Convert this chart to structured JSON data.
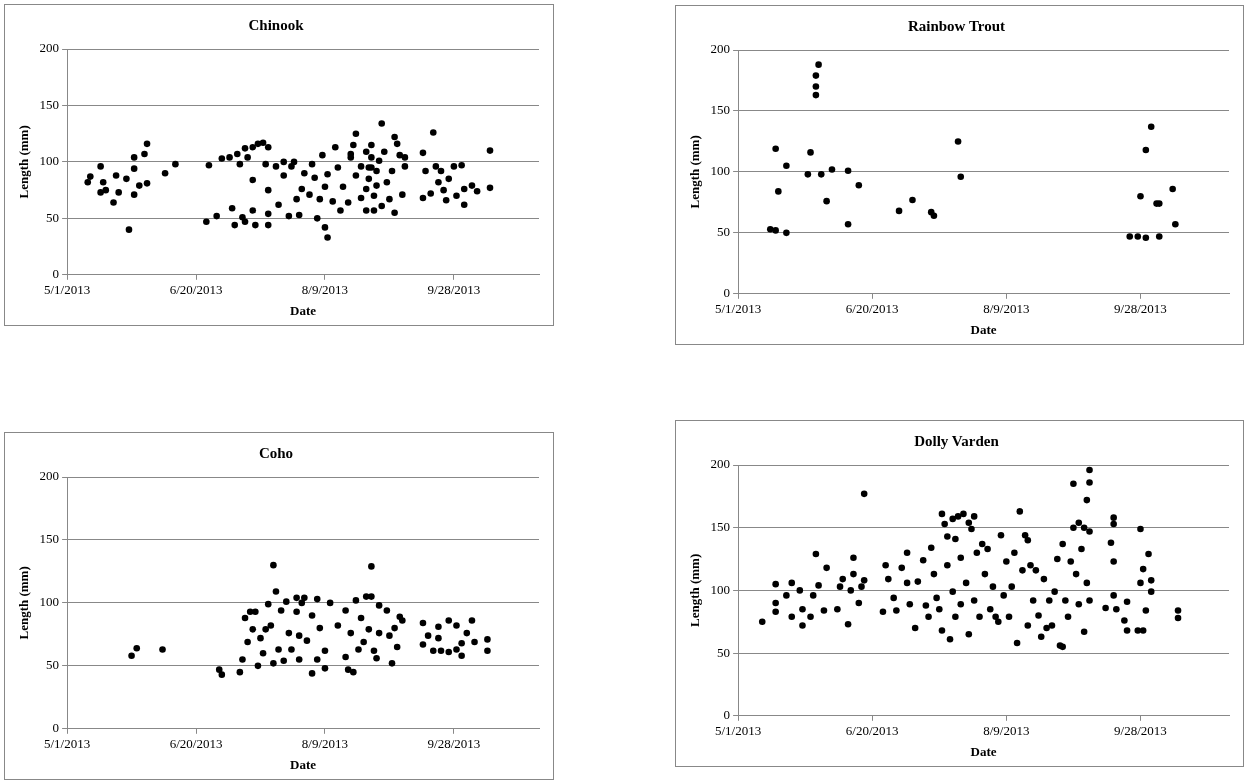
{
  "chart_data": [
    {
      "type": "scatter",
      "title": "Chinook",
      "xlabel": "Date",
      "ylabel": "Length (mm)",
      "color": "#000000",
      "marker": "circle",
      "grid": "y",
      "xlim": [
        "2013-05-01",
        "2013-10-31"
      ],
      "xticks": [
        {
          "value": "2013-05-01",
          "label": "5/1/2013"
        },
        {
          "value": "2013-06-20",
          "label": "6/20/2013"
        },
        {
          "value": "2013-08-09",
          "label": "8/9/2013"
        },
        {
          "value": "2013-09-28",
          "label": "9/28/2013"
        }
      ],
      "ylim": [
        0,
        200
      ],
      "yticks": [
        0,
        50,
        100,
        150,
        200
      ],
      "x": [
        "2013-05-09",
        "2013-05-10",
        "2013-05-14",
        "2013-05-14",
        "2013-05-15",
        "2013-05-16",
        "2013-05-19",
        "2013-05-20",
        "2013-05-21",
        "2013-05-24",
        "2013-05-25",
        "2013-05-27",
        "2013-05-27",
        "2013-05-27",
        "2013-05-29",
        "2013-05-31",
        "2013-06-01",
        "2013-06-01",
        "2013-06-08",
        "2013-06-12",
        "2013-06-25",
        "2013-06-24",
        "2013-06-28",
        "2013-06-30",
        "2013-07-03",
        "2013-07-04",
        "2013-07-05",
        "2013-07-06",
        "2013-07-07",
        "2013-07-08",
        "2013-07-09",
        "2013-07-09",
        "2013-07-10",
        "2013-07-12",
        "2013-07-12",
        "2013-07-12",
        "2013-07-13",
        "2013-07-14",
        "2013-07-16",
        "2013-07-17",
        "2013-07-18",
        "2013-07-18",
        "2013-07-18",
        "2013-07-18",
        "2013-07-21",
        "2013-07-22",
        "2013-07-24",
        "2013-07-24",
        "2013-07-26",
        "2013-07-27",
        "2013-07-28",
        "2013-07-29",
        "2013-07-30",
        "2013-07-31",
        "2013-08-01",
        "2013-08-03",
        "2013-08-04",
        "2013-08-05",
        "2013-08-06",
        "2013-08-07",
        "2013-08-08",
        "2013-08-09",
        "2013-08-09",
        "2013-08-10",
        "2013-08-10",
        "2013-08-12",
        "2013-08-13",
        "2013-08-14",
        "2013-08-15",
        "2013-08-16",
        "2013-08-18",
        "2013-08-19",
        "2013-08-19",
        "2013-08-20",
        "2013-08-21",
        "2013-08-21",
        "2013-08-23",
        "2013-08-23",
        "2013-08-25",
        "2013-08-25",
        "2013-08-25",
        "2013-08-26",
        "2013-08-26",
        "2013-08-27",
        "2013-08-27",
        "2013-08-27",
        "2013-08-28",
        "2013-08-28",
        "2013-08-29",
        "2013-08-29",
        "2013-08-30",
        "2013-08-31",
        "2013-08-31",
        "2013-09-01",
        "2013-09-02",
        "2013-09-03",
        "2013-09-04",
        "2013-09-05",
        "2013-09-05",
        "2013-09-06",
        "2013-09-07",
        "2013-09-08",
        "2013-09-09",
        "2013-09-09",
        "2013-09-16",
        "2013-09-16",
        "2013-09-17",
        "2013-09-19",
        "2013-09-20",
        "2013-09-21",
        "2013-09-22",
        "2013-09-23",
        "2013-09-24",
        "2013-09-25",
        "2013-09-26",
        "2013-09-28",
        "2013-09-29",
        "2013-10-01",
        "2013-10-02",
        "2013-10-02",
        "2013-10-05",
        "2013-10-07",
        "2013-10-12",
        "2013-10-12"
      ],
      "values": [
        82,
        87,
        96,
        73,
        82,
        75,
        64,
        88,
        73,
        85,
        40,
        104,
        71,
        94,
        79,
        107,
        116,
        81,
        90,
        98,
        97,
        47,
        52,
        103,
        104,
        59,
        44,
        107,
        98,
        51,
        112,
        47,
        104,
        113,
        84,
        57,
        44,
        116,
        117,
        98,
        113,
        75,
        54,
        44,
        96,
        62,
        100,
        88,
        52,
        96,
        100,
        67,
        53,
        76,
        90,
        71,
        98,
        86,
        50,
        67,
        106,
        78,
        42,
        33,
        89,
        65,
        113,
        95,
        57,
        78,
        64,
        107,
        104,
        115,
        125,
        88,
        68,
        96,
        76,
        109,
        57,
        85,
        95,
        115,
        95,
        104,
        70,
        57,
        79,
        92,
        101,
        134,
        61,
        109,
        82,
        67,
        92,
        122,
        55,
        116,
        106,
        71,
        104,
        96,
        108,
        68,
        92,
        72,
        126,
        96,
        82,
        92,
        75,
        66,
        85,
        96,
        70,
        97,
        62,
        76,
        79,
        74,
        110,
        77
      ]
    },
    {
      "type": "scatter",
      "title": "Rainbow Trout",
      "xlabel": "Date",
      "ylabel": "Length (mm)",
      "color": "#000000",
      "marker": "circle",
      "grid": "y",
      "xlim": [
        "2013-05-01",
        "2013-10-31"
      ],
      "xticks": [
        {
          "value": "2013-05-01",
          "label": "5/1/2013"
        },
        {
          "value": "2013-06-20",
          "label": "6/20/2013"
        },
        {
          "value": "2013-08-09",
          "label": "8/9/2013"
        },
        {
          "value": "2013-09-28",
          "label": "9/28/2013"
        }
      ],
      "ylim": [
        0,
        200
      ],
      "yticks": [
        0,
        50,
        100,
        150,
        200
      ],
      "x": [
        "2013-05-13",
        "2013-05-15",
        "2013-05-15",
        "2013-05-16",
        "2013-05-19",
        "2013-05-19",
        "2013-05-27",
        "2013-05-28",
        "2013-05-30",
        "2013-05-30",
        "2013-05-30",
        "2013-05-31",
        "2013-06-01",
        "2013-06-03",
        "2013-06-05",
        "2013-06-11",
        "2013-06-11",
        "2013-06-15",
        "2013-06-30",
        "2013-07-05",
        "2013-07-12",
        "2013-07-13",
        "2013-07-22",
        "2013-07-23",
        "2013-09-24",
        "2013-09-27",
        "2013-09-28",
        "2013-09-30",
        "2013-09-30",
        "2013-10-02",
        "2013-10-04",
        "2013-10-05",
        "2013-10-05",
        "2013-10-10",
        "2013-10-11"
      ],
      "values": [
        53,
        119,
        52,
        84,
        105,
        50,
        98,
        116,
        179,
        170,
        163,
        188,
        98,
        76,
        102,
        101,
        57,
        89,
        68,
        77,
        67,
        64,
        125,
        96,
        47,
        47,
        80,
        118,
        46,
        137,
        74,
        74,
        47,
        86,
        57
      ]
    },
    {
      "type": "scatter",
      "title": "Coho",
      "xlabel": "Date",
      "ylabel": "Length (mm)",
      "color": "#000000",
      "marker": "circle",
      "grid": "y",
      "xlim": [
        "2013-05-01",
        "2013-10-31"
      ],
      "xticks": [
        {
          "value": "2013-05-01",
          "label": "5/1/2013"
        },
        {
          "value": "2013-06-20",
          "label": "6/20/2013"
        },
        {
          "value": "2013-08-09",
          "label": "8/9/2013"
        },
        {
          "value": "2013-09-28",
          "label": "9/28/2013"
        }
      ],
      "ylim": [
        0,
        200
      ],
      "yticks": [
        0,
        50,
        100,
        150,
        200
      ],
      "x": [
        "2013-05-26",
        "2013-05-28",
        "2013-06-07",
        "2013-06-29",
        "2013-06-30",
        "2013-07-07",
        "2013-07-08",
        "2013-07-09",
        "2013-07-10",
        "2013-07-11",
        "2013-07-12",
        "2013-07-13",
        "2013-07-14",
        "2013-07-15",
        "2013-07-16",
        "2013-07-17",
        "2013-07-18",
        "2013-07-19",
        "2013-07-20",
        "2013-07-20",
        "2013-07-21",
        "2013-07-22",
        "2013-07-23",
        "2013-07-24",
        "2013-07-25",
        "2013-07-26",
        "2013-07-27",
        "2013-07-29",
        "2013-07-29",
        "2013-07-30",
        "2013-07-30",
        "2013-07-31",
        "2013-08-01",
        "2013-08-02",
        "2013-08-04",
        "2013-08-04",
        "2013-08-06",
        "2013-08-06",
        "2013-08-07",
        "2013-08-09",
        "2013-08-09",
        "2013-08-11",
        "2013-08-14",
        "2013-08-17",
        "2013-08-17",
        "2013-08-18",
        "2013-08-19",
        "2013-08-20",
        "2013-08-21",
        "2013-08-22",
        "2013-08-23",
        "2013-08-24",
        "2013-08-25",
        "2013-08-26",
        "2013-08-27",
        "2013-08-27",
        "2013-08-28",
        "2013-08-29",
        "2013-08-30",
        "2013-08-30",
        "2013-09-02",
        "2013-09-03",
        "2013-09-04",
        "2013-09-05",
        "2013-09-06",
        "2013-09-07",
        "2013-09-08",
        "2013-09-16",
        "2013-09-16",
        "2013-09-18",
        "2013-09-20",
        "2013-09-22",
        "2013-09-22",
        "2013-09-23",
        "2013-09-26",
        "2013-09-26",
        "2013-09-29",
        "2013-09-29",
        "2013-10-01",
        "2013-10-01",
        "2013-10-03",
        "2013-10-05",
        "2013-10-06",
        "2013-10-11",
        "2013-10-11"
      ],
      "values": [
        58,
        64,
        63,
        47,
        43,
        45,
        55,
        88,
        69,
        93,
        79,
        93,
        50,
        72,
        60,
        79,
        99,
        82,
        130,
        52,
        109,
        63,
        94,
        54,
        101,
        76,
        63,
        104,
        93,
        55,
        74,
        100,
        104,
        70,
        44,
        90,
        103,
        55,
        80,
        48,
        62,
        100,
        82,
        57,
        94,
        47,
        76,
        45,
        102,
        63,
        88,
        69,
        105,
        79,
        129,
        105,
        62,
        56,
        98,
        76,
        94,
        74,
        52,
        80,
        65,
        89,
        86,
        84,
        67,
        74,
        62,
        81,
        72,
        62,
        86,
        61,
        82,
        63,
        58,
        68,
        76,
        86,
        69,
        71,
        62
      ]
    },
    {
      "type": "scatter",
      "title": "Dolly Varden",
      "xlabel": "Date",
      "ylabel": "Length (mm)",
      "color": "#000000",
      "marker": "circle",
      "grid": "y",
      "xlim": [
        "2013-05-01",
        "2013-10-31"
      ],
      "xticks": [
        {
          "value": "2013-05-01",
          "label": "5/1/2013"
        },
        {
          "value": "2013-06-20",
          "label": "6/20/2013"
        },
        {
          "value": "2013-08-09",
          "label": "8/9/2013"
        },
        {
          "value": "2013-09-28",
          "label": "9/28/2013"
        }
      ],
      "ylim": [
        0,
        200
      ],
      "yticks": [
        0,
        50,
        100,
        150,
        200
      ],
      "x": [
        "2013-05-10",
        "2013-05-15",
        "2013-05-15",
        "2013-05-15",
        "2013-05-19",
        "2013-05-21",
        "2013-05-21",
        "2013-05-24",
        "2013-05-25",
        "2013-05-25",
        "2013-05-28",
        "2013-05-29",
        "2013-05-30",
        "2013-05-31",
        "2013-06-02",
        "2013-06-03",
        "2013-06-07",
        "2013-06-08",
        "2013-06-09",
        "2013-06-11",
        "2013-06-12",
        "2013-06-13",
        "2013-06-13",
        "2013-06-15",
        "2013-06-16",
        "2013-06-17",
        "2013-06-17",
        "2013-06-24",
        "2013-06-25",
        "2013-06-26",
        "2013-06-28",
        "2013-06-29",
        "2013-07-01",
        "2013-07-03",
        "2013-07-03",
        "2013-07-04",
        "2013-07-06",
        "2013-07-07",
        "2013-07-09",
        "2013-07-10",
        "2013-07-11",
        "2013-07-12",
        "2013-07-13",
        "2013-07-14",
        "2013-07-15",
        "2013-07-16",
        "2013-07-16",
        "2013-07-17",
        "2013-07-18",
        "2013-07-18",
        "2013-07-19",
        "2013-07-20",
        "2013-07-20",
        "2013-07-21",
        "2013-07-21",
        "2013-07-22",
        "2013-07-23",
        "2013-07-23",
        "2013-07-24",
        "2013-07-25",
        "2013-07-26",
        "2013-07-26",
        "2013-07-27",
        "2013-07-28",
        "2013-07-28",
        "2013-07-29",
        "2013-07-30",
        "2013-07-31",
        "2013-08-01",
        "2013-08-02",
        "2013-08-03",
        "2013-08-04",
        "2013-08-05",
        "2013-08-06",
        "2013-08-07",
        "2013-08-08",
        "2013-08-09",
        "2013-08-10",
        "2013-08-11",
        "2013-08-12",
        "2013-08-13",
        "2013-08-14",
        "2013-08-15",
        "2013-08-16",
        "2013-08-17",
        "2013-08-17",
        "2013-08-18",
        "2013-08-19",
        "2013-08-20",
        "2013-08-21",
        "2013-08-22",
        "2013-08-23",
        "2013-08-24",
        "2013-08-25",
        "2013-08-26",
        "2013-08-27",
        "2013-08-28",
        "2013-08-29",
        "2013-08-30",
        "2013-08-30",
        "2013-08-31",
        "2013-09-01",
        "2013-09-02",
        "2013-09-03",
        "2013-09-03",
        "2013-09-04",
        "2013-09-05",
        "2013-09-05",
        "2013-09-06",
        "2013-09-07",
        "2013-09-07",
        "2013-09-08",
        "2013-09-08",
        "2013-09-09",
        "2013-09-09",
        "2013-09-09",
        "2013-09-09",
        "2013-09-15",
        "2013-09-17",
        "2013-09-18",
        "2013-09-18",
        "2013-09-18",
        "2013-09-18",
        "2013-09-19",
        "2013-09-22",
        "2013-09-23",
        "2013-09-23",
        "2013-09-27",
        "2013-09-28",
        "2013-09-28",
        "2013-09-29",
        "2013-09-29",
        "2013-09-30",
        "2013-10-01",
        "2013-10-02",
        "2013-10-02",
        "2013-10-12",
        "2013-10-12"
      ],
      "values": [
        75,
        105,
        83,
        90,
        96,
        106,
        79,
        100,
        72,
        85,
        79,
        96,
        129,
        104,
        84,
        118,
        85,
        103,
        109,
        73,
        100,
        126,
        113,
        90,
        103,
        177,
        108,
        83,
        120,
        109,
        94,
        84,
        118,
        130,
        106,
        89,
        70,
        107,
        124,
        88,
        79,
        134,
        113,
        94,
        85,
        161,
        68,
        153,
        143,
        120,
        61,
        157,
        99,
        141,
        79,
        159,
        126,
        89,
        161,
        106,
        65,
        154,
        149,
        159,
        92,
        130,
        79,
        137,
        113,
        133,
        85,
        103,
        79,
        75,
        144,
        96,
        123,
        79,
        103,
        130,
        58,
        163,
        116,
        144,
        140,
        72,
        120,
        92,
        116,
        80,
        63,
        109,
        70,
        92,
        72,
        99,
        125,
        56,
        55,
        137,
        92,
        79,
        123,
        185,
        150,
        113,
        154,
        89,
        133,
        67,
        150,
        172,
        106,
        196,
        186,
        147,
        92,
        86,
        138,
        158,
        153,
        123,
        96,
        85,
        76,
        91,
        68,
        68,
        149,
        106,
        68,
        117,
        84,
        129,
        108,
        99,
        84,
        78
      ]
    }
  ]
}
